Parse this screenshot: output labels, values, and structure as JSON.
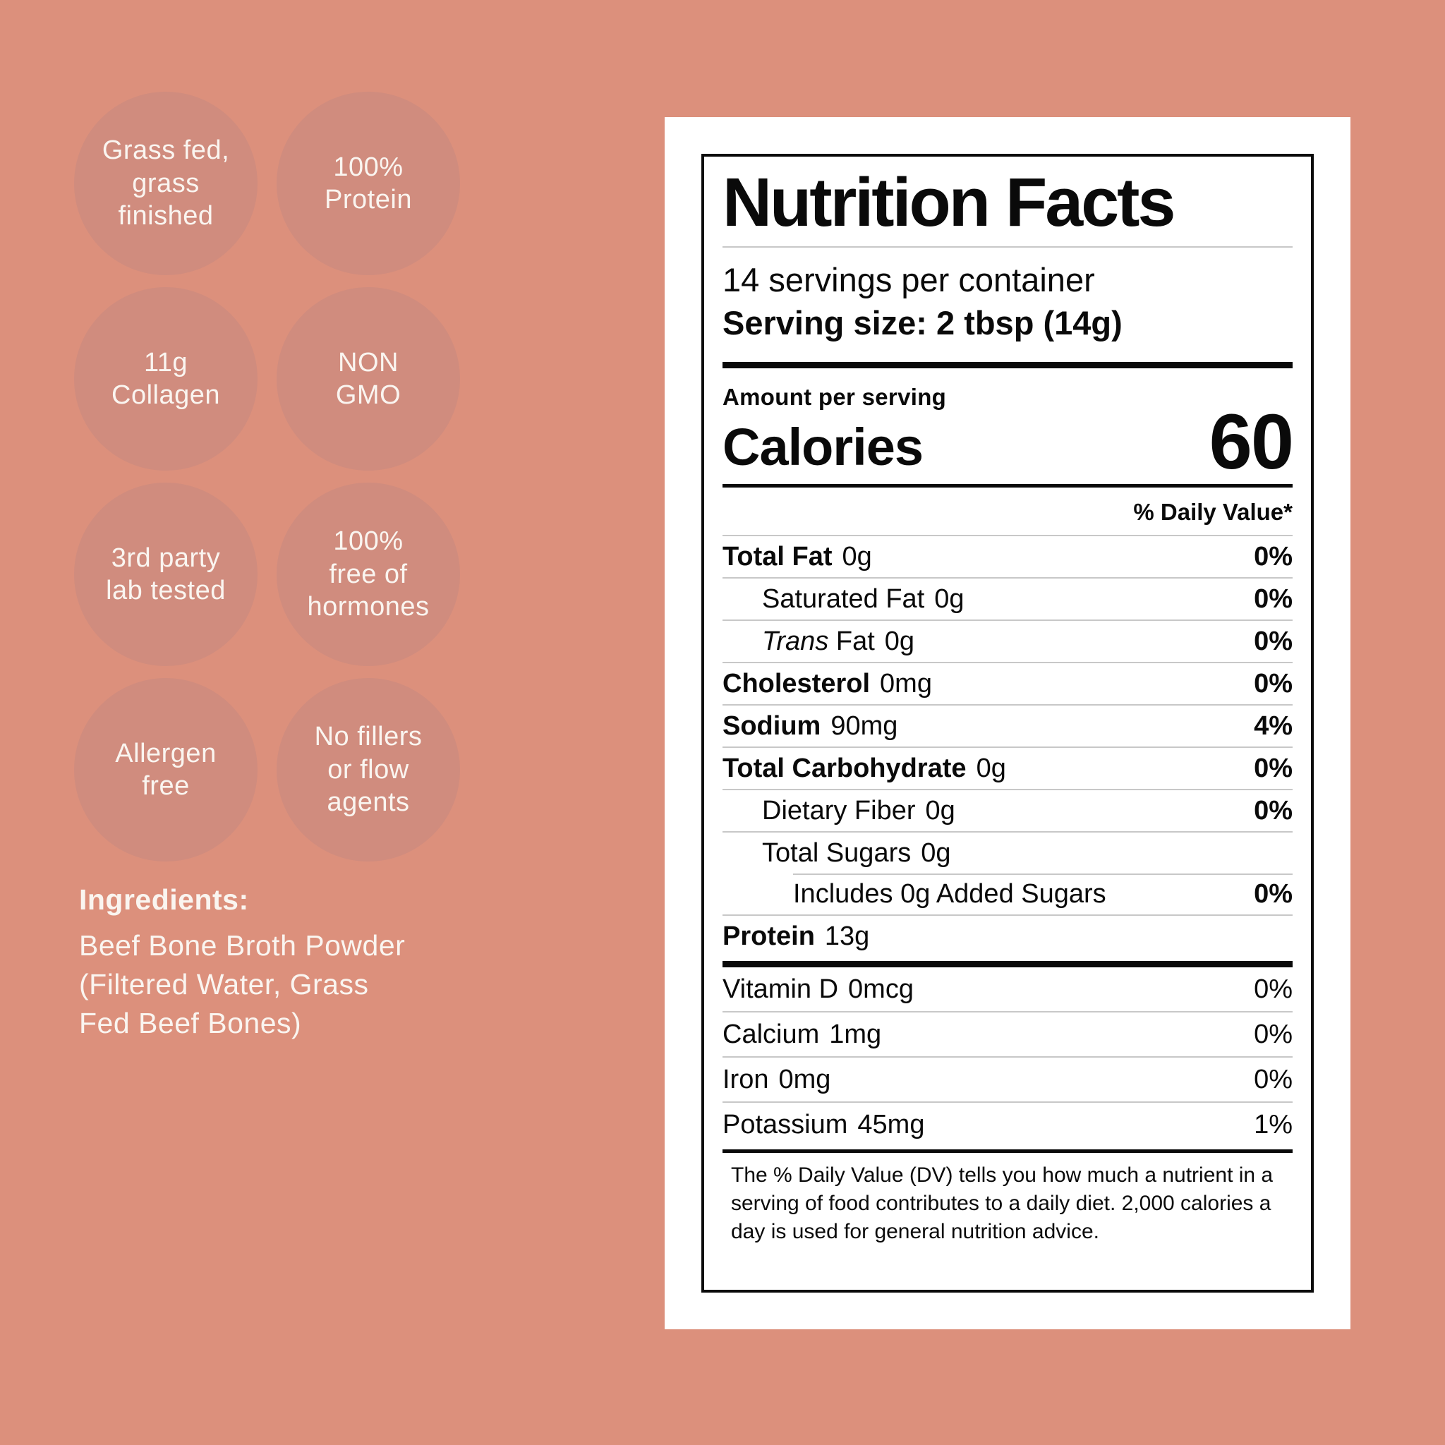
{
  "colors": {
    "page_bg": "#DC907C",
    "badge_bg": "#D08C7E",
    "badge_text": "#FAF5F0",
    "label_bg": "#FFFFFF",
    "label_ink": "#0A0A0A",
    "hairline": "#C8C8C8"
  },
  "badges": [
    {
      "lines": [
        "Grass fed,",
        "grass",
        "finished"
      ]
    },
    {
      "lines": [
        "100%",
        "Protein"
      ]
    },
    {
      "lines": [
        "11g",
        "Collagen"
      ]
    },
    {
      "lines": [
        "NON",
        "GMO"
      ]
    },
    {
      "lines": [
        "3rd party",
        "lab tested"
      ]
    },
    {
      "lines": [
        "100%",
        "free of",
        "hormones"
      ]
    },
    {
      "lines": [
        "Allergen",
        "free"
      ]
    },
    {
      "lines": [
        "No fillers",
        "or flow",
        "agents"
      ]
    }
  ],
  "ingredients": {
    "heading": "Ingredients:",
    "lines": [
      "Beef Bone Broth Powder",
      "(Filtered Water, Grass",
      "Fed Beef Bones)"
    ]
  },
  "nutrition_facts": {
    "title": "Nutrition Facts",
    "servings_per_container": "14 servings per container",
    "serving_size": "Serving size: 2 tbsp (14g)",
    "amount_per_serving": "Amount per serving",
    "calories_label": "Calories",
    "calories_value": "60",
    "daily_value_header": "% Daily Value*",
    "rows": [
      {
        "name": "Total Fat",
        "amount": "0g",
        "dv": "0%",
        "indent": 0,
        "bold": true,
        "dv_bold": true
      },
      {
        "name": "Saturated Fat",
        "amount": "0g",
        "dv": "0%",
        "indent": 1,
        "bold": false,
        "dv_bold": true
      },
      {
        "italic": "Trans",
        "name": "Fat",
        "amount": "0g",
        "dv": "0%",
        "indent": 1,
        "bold": false,
        "dv_bold": true
      },
      {
        "name": "Cholesterol",
        "amount": "0mg",
        "dv": "0%",
        "indent": 0,
        "bold": true,
        "dv_bold": true
      },
      {
        "name": "Sodium",
        "amount": "90mg",
        "dv": "4%",
        "indent": 0,
        "bold": true,
        "dv_bold": true
      },
      {
        "name": "Total Carbohydrate",
        "amount": "0g",
        "dv": "0%",
        "indent": 0,
        "bold": true,
        "dv_bold": true
      },
      {
        "name": "Dietary Fiber",
        "amount": "0g",
        "dv": "0%",
        "indent": 1,
        "bold": false,
        "dv_bold": true
      },
      {
        "name": "Total Sugars",
        "amount": "0g",
        "dv": "",
        "indent": 1,
        "bold": false,
        "dv_bold": false
      },
      {
        "name": "Includes 0g Added Sugars",
        "amount": "",
        "dv": "0%",
        "indent": 2,
        "bold": false,
        "dv_bold": true,
        "sep": "indent"
      },
      {
        "name": "Protein",
        "amount": "13g",
        "dv": "",
        "indent": 0,
        "bold": true,
        "dv_bold": false
      }
    ],
    "vitamins": [
      {
        "name": "Vitamin D",
        "amount": "0mcg",
        "dv": "0%"
      },
      {
        "name": "Calcium",
        "amount": "1mg",
        "dv": "0%"
      },
      {
        "name": "Iron",
        "amount": "0mg",
        "dv": "0%"
      },
      {
        "name": "Potassium",
        "amount": "45mg",
        "dv": "1%"
      }
    ],
    "footnote": "The % Daily Value (DV) tells you how much a nutrient in a serving of food contributes to a daily diet. 2,000 calories a day is used for general nutrition advice."
  }
}
